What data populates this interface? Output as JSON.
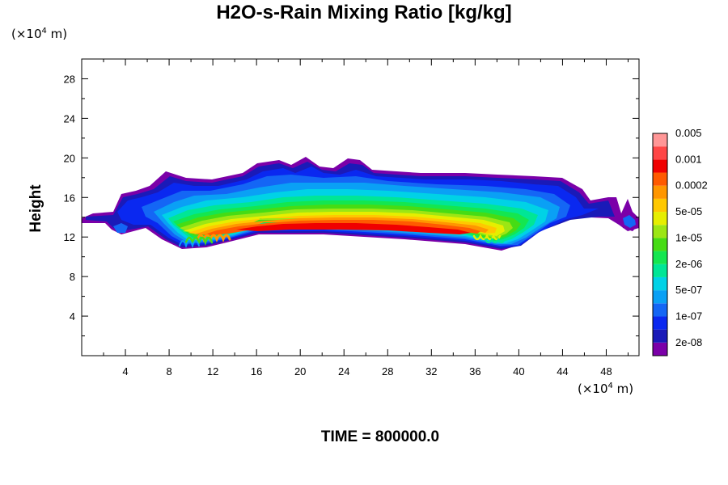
{
  "chart_data": {
    "type": "heatmap",
    "title": "H2O-s-Rain Mixing Ratio [kg/kg]",
    "ylabel": "Height",
    "xlabel": "",
    "x_unit": "(×10⁴ m)",
    "y_unit": "(×10⁴ m)",
    "x_unit_parts": {
      "prefix": "(×10",
      "exp": "4",
      "suffix": " m)"
    },
    "y_unit_parts": {
      "prefix": "(×10",
      "exp": "4",
      "suffix": " m)"
    },
    "xlim": [
      0,
      51
    ],
    "ylim": [
      0,
      30
    ],
    "x_ticks": [
      4,
      8,
      12,
      16,
      20,
      24,
      28,
      32,
      36,
      40,
      44,
      48
    ],
    "y_ticks": [
      4,
      8,
      12,
      16,
      20,
      24,
      28
    ],
    "colorbar": {
      "levels": [
        "2e-08",
        "1e-07",
        "5e-07",
        "2e-06",
        "1e-05",
        "5e-05",
        "0.0002",
        "0.001",
        "0.005"
      ],
      "colors": [
        "#7b00a8",
        "#1a1ab8",
        "#0a28f0",
        "#1466f5",
        "#0aa0f5",
        "#00d2e6",
        "#00e696",
        "#14e650",
        "#46dc14",
        "#9ce614",
        "#e6ee00",
        "#ffc800",
        "#ff9600",
        "#ff5a00",
        "#f00000",
        "#ff4646",
        "#ff9696"
      ]
    },
    "footer": "TIME = 800000.0"
  }
}
